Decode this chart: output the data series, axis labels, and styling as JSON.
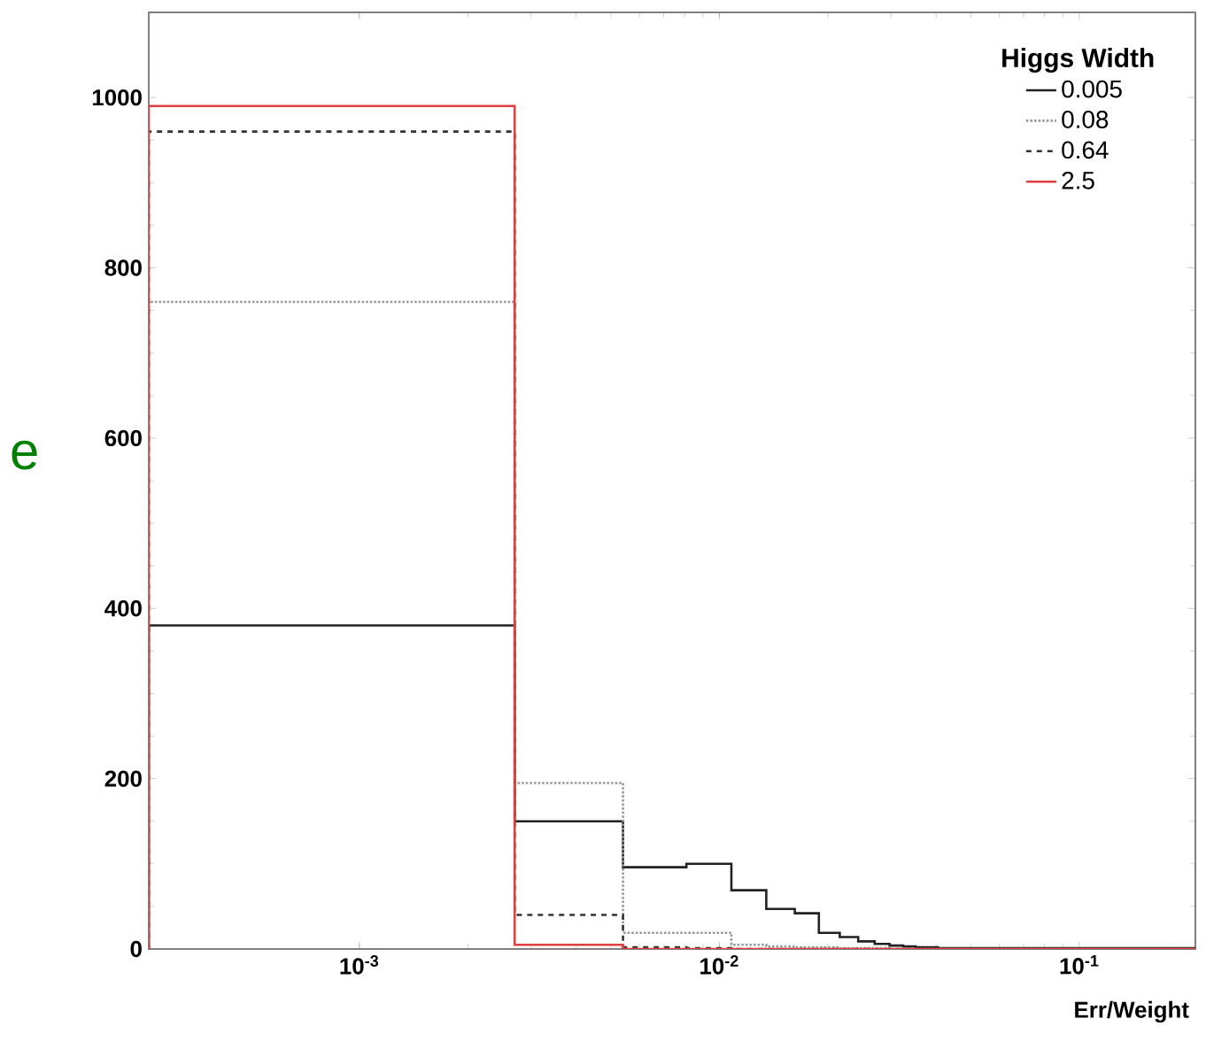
{
  "chart_data": {
    "type": "histogram",
    "xlabel": "Err/Weight",
    "legend_title": "Higgs Width",
    "legend": "top right",
    "log": "x",
    "grid": false,
    "annotations": [
      "e"
    ],
    "bins": [
      0.00026,
      0.0027,
      0.0054,
      0.0081,
      0.0108,
      0.0135,
      0.0162,
      0.0189,
      0.0216,
      0.0243,
      0.027,
      0.0297,
      0.0324,
      0.0351,
      0.0378,
      0.0405,
      0.21
    ],
    "series": [
      {
        "name": "0.005",
        "color": "#222222",
        "line_style": "solid",
        "values": [
          380,
          150,
          96,
          100,
          69,
          47,
          42,
          19,
          14,
          9,
          6,
          4,
          3,
          2,
          2,
          1
        ]
      },
      {
        "name": "0.08",
        "color": "#999999",
        "line_style": "dotted",
        "values": [
          760,
          195,
          19,
          19,
          5,
          3,
          2,
          2,
          1,
          1,
          1,
          0,
          0,
          0,
          0,
          0
        ]
      },
      {
        "name": "0.64",
        "color": "#333333",
        "line_style": "dashed",
        "values": [
          960,
          40,
          2,
          1,
          0,
          0,
          0,
          0,
          0,
          0,
          0,
          0,
          0,
          0,
          0,
          0
        ]
      },
      {
        "name": "2.5",
        "color": "#e04040",
        "line_style": "solid",
        "values": [
          990,
          5,
          0,
          0,
          0,
          0,
          0,
          0,
          0,
          0,
          0,
          0,
          0,
          0,
          0,
          0
        ]
      }
    ],
    "xlim": [
      0.00026,
      0.21
    ],
    "ylim": [
      0,
      1100
    ],
    "xticks": [
      {
        "value": 0.001,
        "label": "10$^{-3}$"
      },
      {
        "value": 0.01,
        "label": "10$^{-2}$"
      },
      {
        "value": 0.1,
        "label": "10$^{-1}$"
      }
    ],
    "yticks": [
      0,
      200,
      400,
      600,
      800,
      1000
    ]
  }
}
